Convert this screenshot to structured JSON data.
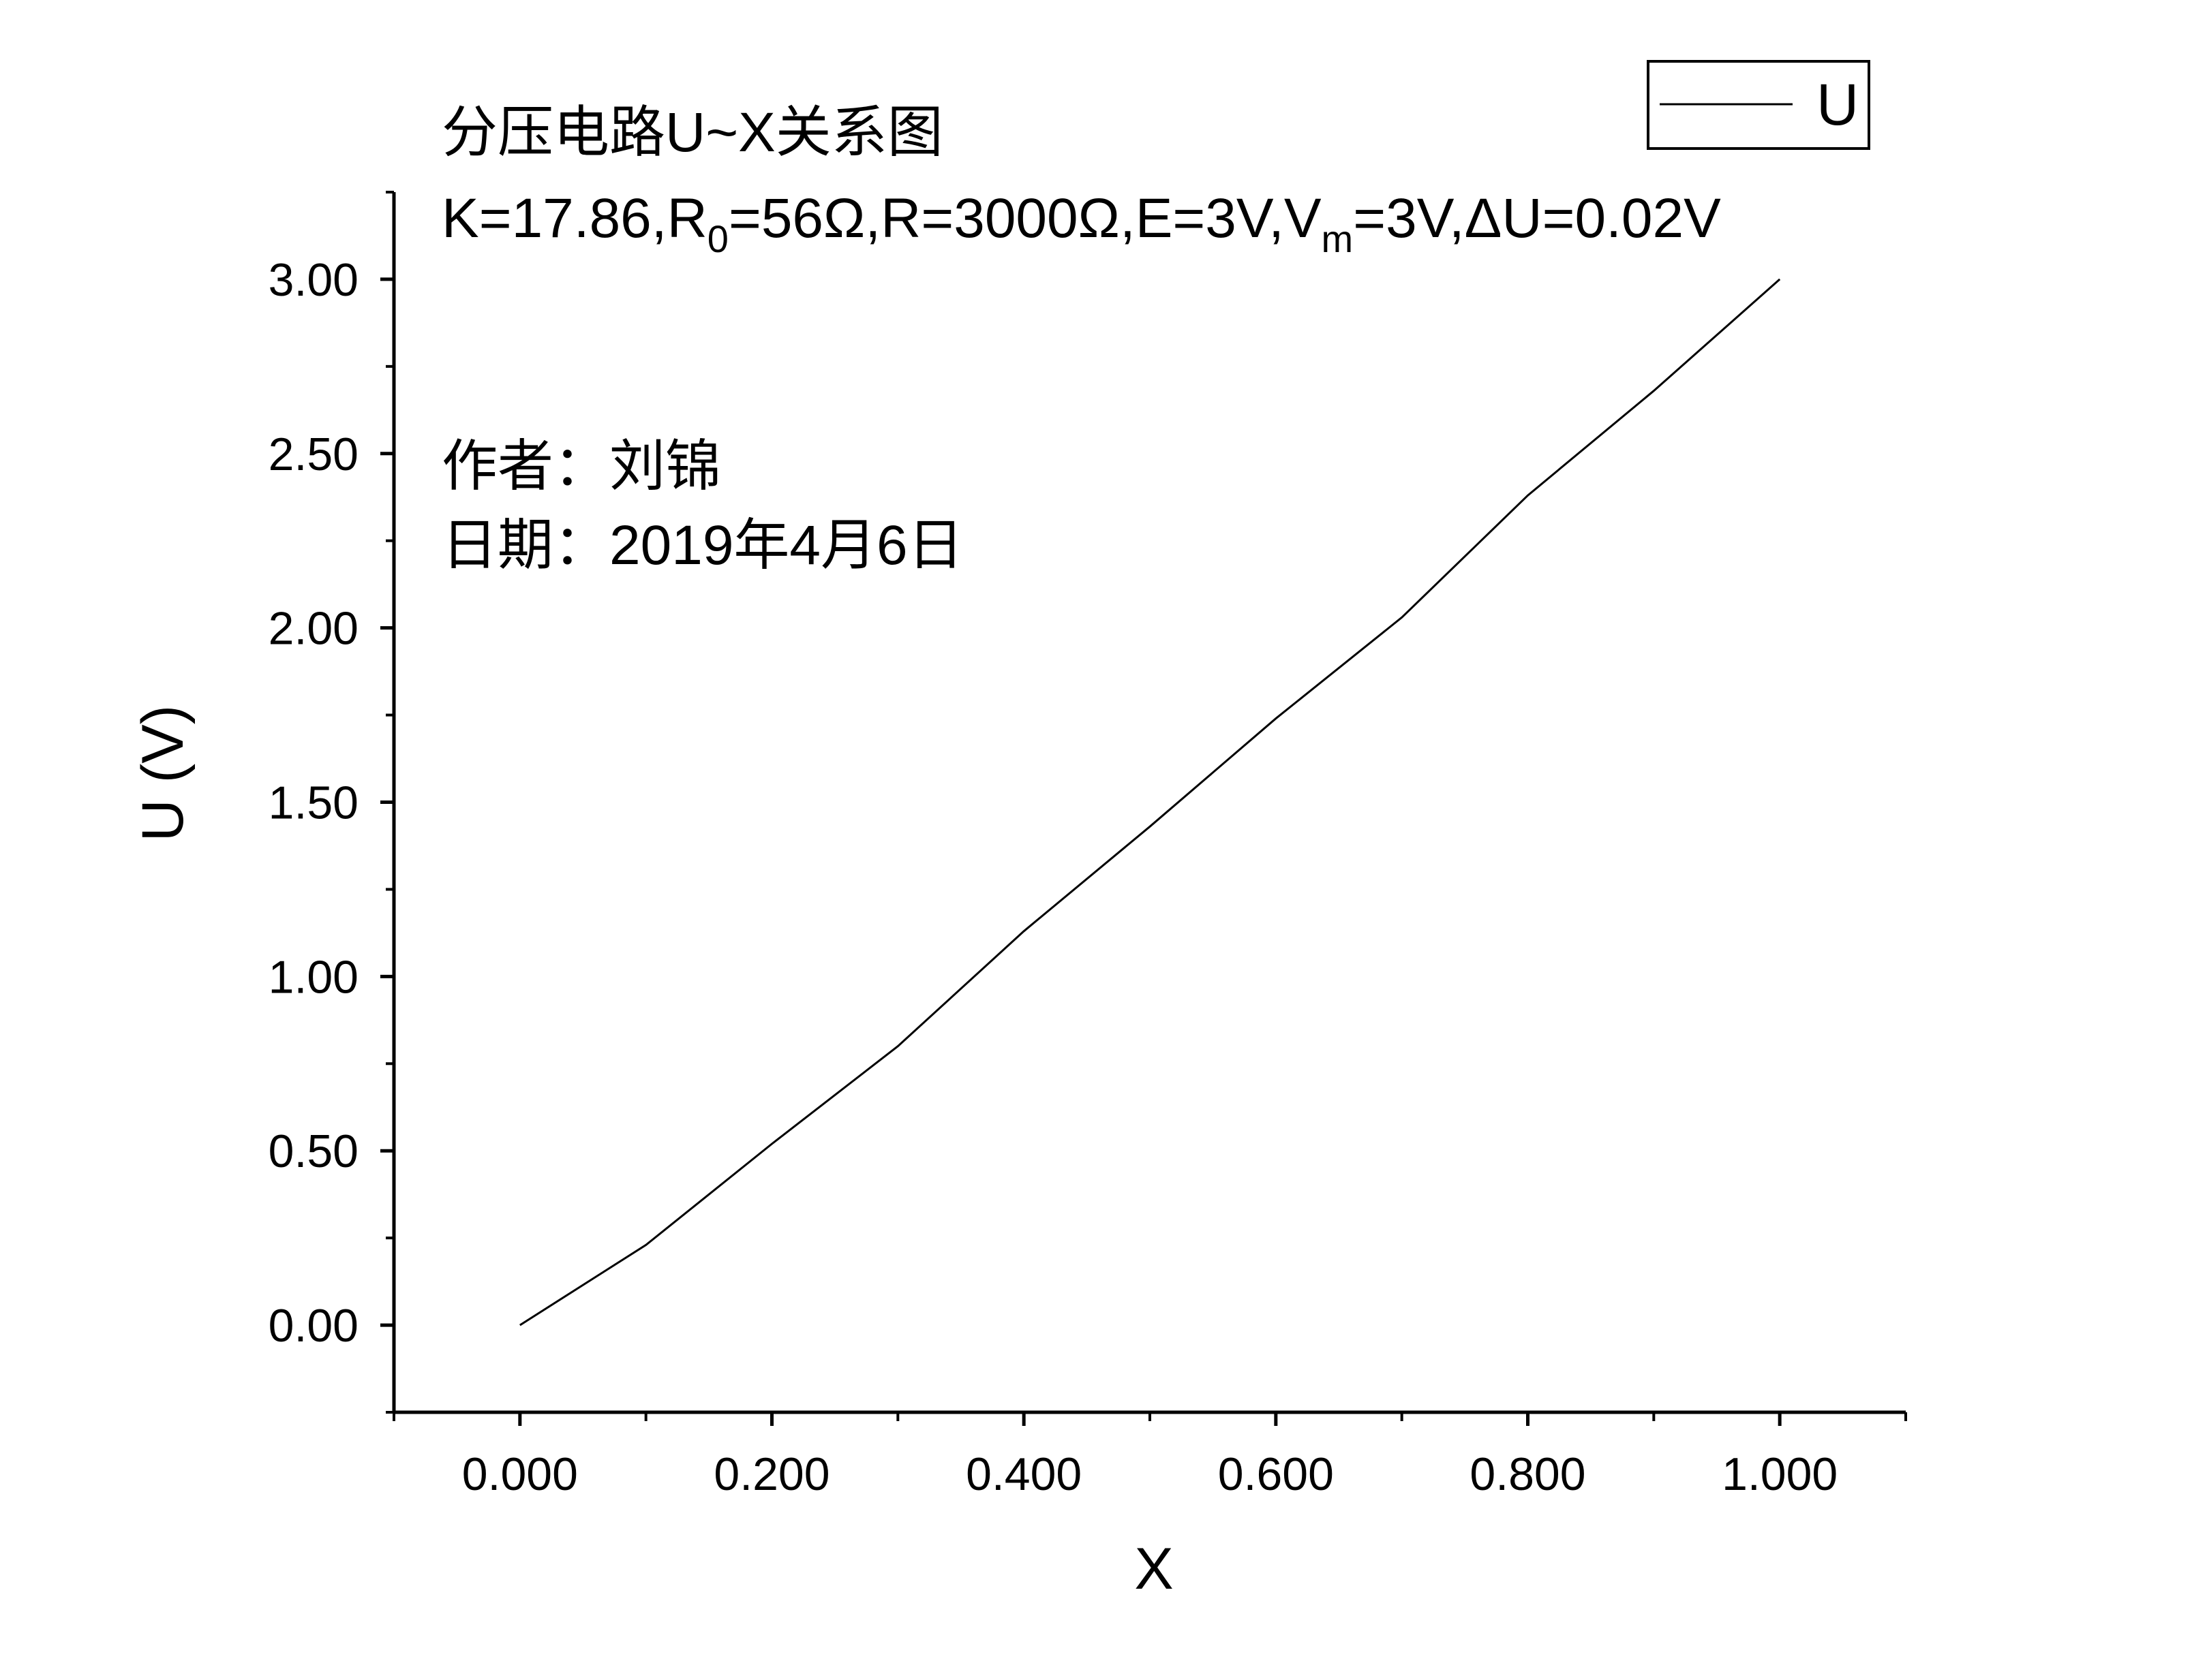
{
  "chart_data": {
    "type": "line",
    "title": "分压电路U~X关系图",
    "params": {
      "k": "K=17.86,R",
      "r0_sub": "0",
      "mid": "=56Ω,R=3000Ω,E=3V,V",
      "vm_sub": "m",
      "tail": "=3V,ΔU=0.02V"
    },
    "author": "作者：刘锦",
    "date": "日期：2019年4月6日",
    "xlabel": "X",
    "ylabel": "U (V)",
    "xlim": [
      -0.1,
      1.1
    ],
    "ylim": [
      -0.25,
      3.25
    ],
    "xticks": [
      "0.000",
      "0.200",
      "0.400",
      "0.600",
      "0.800",
      "1.000"
    ],
    "yticks": [
      "0.00",
      "0.50",
      "1.00",
      "1.50",
      "2.00",
      "2.50",
      "3.00"
    ],
    "legend": {
      "position": "top-right",
      "entries": [
        "U"
      ]
    },
    "grid": false,
    "series": [
      {
        "name": "U",
        "color": "#000000",
        "x": [
          0.0,
          0.1,
          0.2,
          0.3,
          0.4,
          0.5,
          0.6,
          0.7,
          0.8,
          0.9,
          1.0
        ],
        "y": [
          0.0,
          0.23,
          0.52,
          0.8,
          1.13,
          1.43,
          1.74,
          2.03,
          2.38,
          2.68,
          3.0
        ]
      }
    ]
  }
}
